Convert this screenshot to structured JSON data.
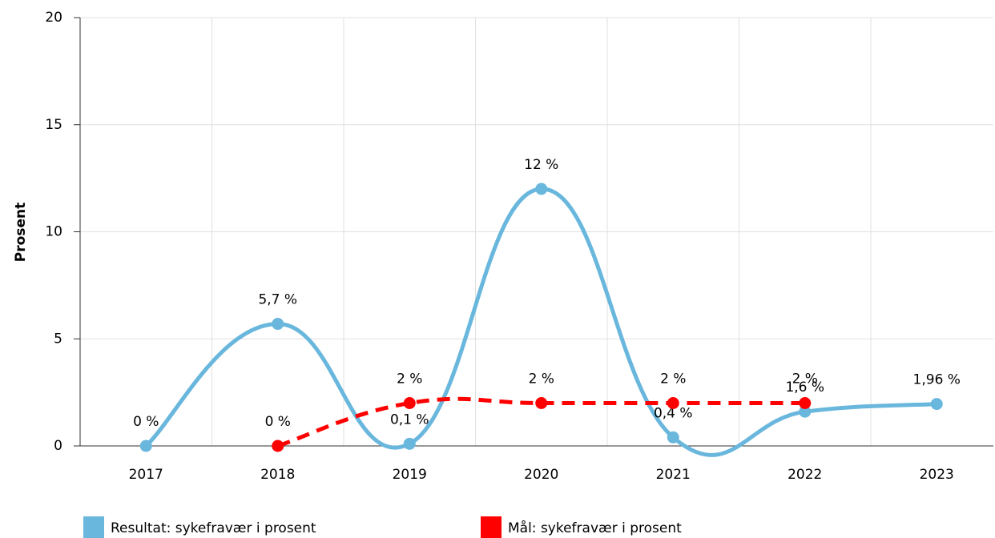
{
  "chart_data": {
    "type": "line",
    "y_label": "Prosent",
    "categories": [
      "2017",
      "2018",
      "2019",
      "2020",
      "2021",
      "2022",
      "2023"
    ],
    "series": [
      {
        "name": "Resultat: sykefravær i prosent",
        "color": "#69b7dd",
        "values": [
          0,
          5.7,
          0.1,
          12,
          0.4,
          1.6,
          1.96
        ],
        "value_labels": [
          "0 %",
          "5,7 %",
          "0,1 %",
          "12 %",
          "0,4 %",
          "1,6 %",
          "1,96 %"
        ]
      },
      {
        "name": "Mål: sykefravær i prosent",
        "color": "#ff0000",
        "dashed": true,
        "values": [
          null,
          0,
          2,
          2,
          2,
          2,
          null
        ],
        "value_labels": [
          null,
          "0 %",
          "2 %",
          "2 %",
          "2 %",
          "2 %",
          null
        ]
      }
    ],
    "ylim": [
      0,
      20
    ],
    "yticks": [
      0,
      5,
      10,
      15,
      20
    ],
    "grid": true,
    "legend": "bottom-left"
  }
}
